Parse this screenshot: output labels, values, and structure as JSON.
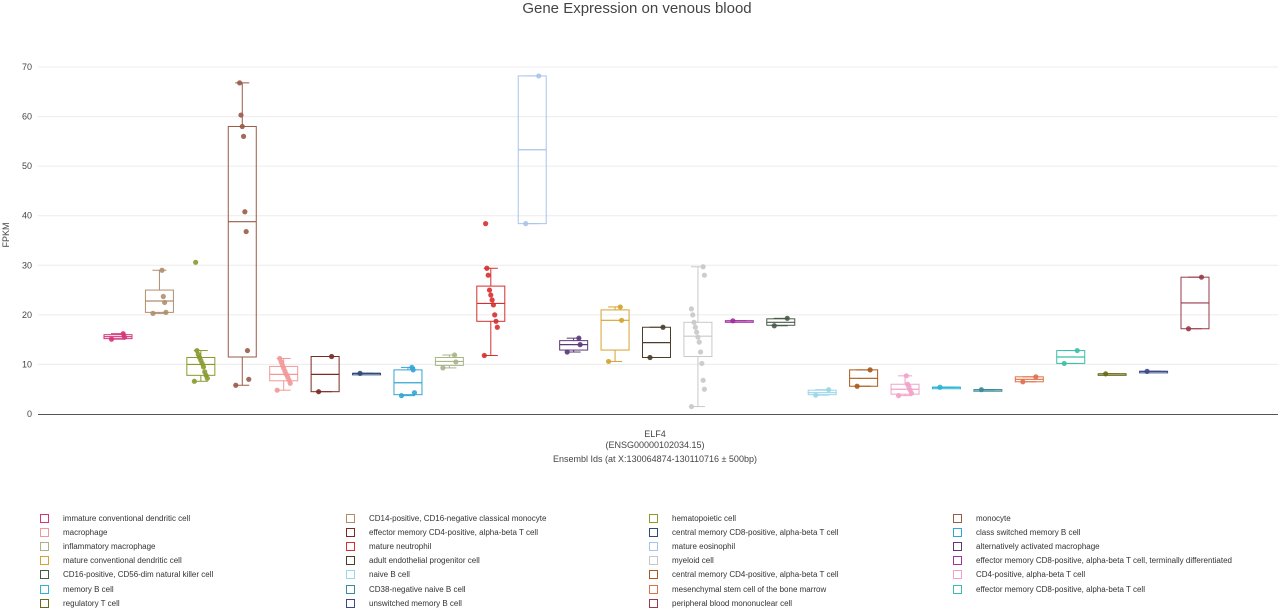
{
  "chart_data": {
    "type": "box",
    "title": "Gene Expression on venous blood",
    "ylabel": "FPKM",
    "xlabel_lines": [
      "ELF4",
      "(ENSG00000102034.15)",
      "Ensembl Ids (at X:130064874-130110716 ± 500bp)"
    ],
    "ylim": [
      0,
      70
    ],
    "yticks": [
      0,
      10,
      20,
      30,
      40,
      50,
      60,
      70
    ],
    "grid": true,
    "series": [
      {
        "name": "immature conventional dendritic cell",
        "color": "#d6337a",
        "min": 15.1,
        "q1": 15.2,
        "median": 15.6,
        "q3": 16.0,
        "max": 16.2,
        "points": [
          15.1,
          15.5,
          16.2
        ]
      },
      {
        "name": "CD14-positive, CD16-negative classical monocyte",
        "color": "#b08e6d",
        "min": 20.3,
        "q1": 20.5,
        "median": 22.8,
        "q3": 25.0,
        "max": 29.0,
        "points": [
          20.3,
          20.5,
          22.5,
          23.7,
          29.0
        ]
      },
      {
        "name": "hematopoietic cell",
        "color": "#8a9a2e",
        "min": 6.6,
        "q1": 7.8,
        "median": 10.0,
        "q3": 11.4,
        "max": 12.8,
        "points": [
          6.6,
          7.2,
          7.8,
          8.5,
          9.5,
          10.2,
          10.8,
          11.4,
          12.0,
          12.8,
          30.6
        ]
      },
      {
        "name": "monocyte",
        "color": "#9a5a48",
        "min": 5.8,
        "q1": 11.5,
        "median": 38.8,
        "q3": 58.0,
        "max": 66.8,
        "points": [
          5.8,
          7.0,
          12.8,
          36.8,
          40.8,
          56.0,
          58.0,
          60.3,
          66.8
        ]
      },
      {
        "name": "macrophage",
        "color": "#f29898",
        "min": 4.8,
        "q1": 6.7,
        "median": 8.0,
        "q3": 9.6,
        "max": 11.2,
        "points": [
          4.8,
          6.2,
          6.9,
          7.5,
          8.0,
          8.6,
          9.2,
          9.8,
          10.5,
          11.2
        ]
      },
      {
        "name": "effector memory CD4-positive, alpha-beta T cell",
        "color": "#7a2a20",
        "min": 4.5,
        "q1": 4.5,
        "median": 8.0,
        "q3": 11.6,
        "max": 11.6,
        "points": [
          4.5,
          11.6
        ]
      },
      {
        "name": "central memory CD8-positive, alpha-beta T cell",
        "color": "#2e4a7a",
        "min": 8.2,
        "q1": 8.2,
        "median": 8.2,
        "q3": 8.2,
        "max": 8.2,
        "points": [
          8.2
        ]
      },
      {
        "name": "class switched memory B cell",
        "color": "#33a5d6",
        "min": 3.7,
        "q1": 3.9,
        "median": 6.3,
        "q3": 8.9,
        "max": 9.4,
        "points": [
          3.7,
          4.3,
          8.9,
          9.4
        ]
      },
      {
        "name": "inflammatory macrophage",
        "color": "#a9b48a",
        "min": 9.3,
        "q1": 9.8,
        "median": 10.6,
        "q3": 11.4,
        "max": 11.9,
        "points": [
          9.3,
          10.5,
          11.9
        ]
      },
      {
        "name": "mature neutrophil",
        "color": "#d62f2f",
        "min": 11.8,
        "q1": 18.7,
        "median": 22.3,
        "q3": 25.8,
        "max": 29.4,
        "points": [
          11.8,
          17.5,
          18.7,
          20.0,
          22.0,
          23.0,
          24.0,
          25.0,
          28.0,
          29.4,
          38.4
        ]
      },
      {
        "name": "mature eosinophil",
        "color": "#a8c4ea",
        "min": 38.4,
        "q1": 38.4,
        "median": 53.3,
        "q3": 68.2,
        "max": 68.2,
        "points": [
          38.4,
          68.2
        ]
      },
      {
        "name": "alternatively activated macrophage",
        "color": "#5a3a7a",
        "min": 12.5,
        "q1": 12.9,
        "median": 14.0,
        "q3": 14.8,
        "max": 15.3,
        "points": [
          12.5,
          14.0,
          15.3
        ]
      },
      {
        "name": "mature conventional dendritic cell",
        "color": "#d6a22f",
        "min": 10.6,
        "q1": 12.9,
        "median": 18.9,
        "q3": 21.0,
        "max": 21.6,
        "points": [
          10.6,
          18.9,
          21.6
        ]
      },
      {
        "name": "adult endothelial progenitor cell",
        "color": "#4a3e2a",
        "min": 11.4,
        "q1": 11.4,
        "median": 14.4,
        "q3": 17.5,
        "max": 17.5,
        "points": [
          11.4,
          17.5
        ]
      },
      {
        "name": "myeloid cell",
        "color": "#c8c8c8",
        "min": 1.5,
        "q1": 11.6,
        "median": 15.7,
        "q3": 18.5,
        "max": 29.7,
        "points": [
          1.5,
          5.0,
          6.8,
          10.2,
          12.5,
          14.5,
          15.5,
          16.5,
          17.5,
          18.5,
          20.0,
          21.2,
          28.0,
          29.7
        ]
      },
      {
        "name": "effector memory CD8-positive, alpha-beta T cell, terminally differentiated",
        "color": "#a02fa0",
        "min": 18.8,
        "q1": 18.8,
        "median": 18.8,
        "q3": 18.8,
        "max": 18.8,
        "points": [
          18.8
        ]
      },
      {
        "name": "CD16-positive, CD56-dim natural killer cell",
        "color": "#4a5a4a",
        "min": 17.8,
        "q1": 17.9,
        "median": 18.5,
        "q3": 19.2,
        "max": 19.3,
        "points": [
          17.8,
          19.3
        ]
      },
      {
        "name": "naive B cell",
        "color": "#99d6e8",
        "min": 3.8,
        "q1": 3.9,
        "median": 4.3,
        "q3": 4.8,
        "max": 4.9,
        "points": [
          3.8,
          4.9
        ]
      },
      {
        "name": "central memory CD4-positive, alpha-beta T cell",
        "color": "#a85a1a",
        "min": 5.6,
        "q1": 5.6,
        "median": 7.2,
        "q3": 8.9,
        "max": 8.9,
        "points": [
          5.6,
          8.9
        ]
      },
      {
        "name": "CD4-positive, alpha-beta T cell",
        "color": "#f2a2c8",
        "min": 3.7,
        "q1": 4.0,
        "median": 5.0,
        "q3": 6.0,
        "max": 7.7,
        "points": [
          3.7,
          4.2,
          4.8,
          5.5,
          6.0,
          7.7
        ]
      },
      {
        "name": "memory B cell",
        "color": "#2ab4d6",
        "min": 5.4,
        "q1": 5.4,
        "median": 5.4,
        "q3": 5.4,
        "max": 5.4,
        "points": [
          5.4
        ]
      },
      {
        "name": "CD38-negative naive B cell",
        "color": "#3a8a9a",
        "min": 4.9,
        "q1": 4.9,
        "median": 4.9,
        "q3": 4.9,
        "max": 4.9,
        "points": [
          4.9
        ]
      },
      {
        "name": "mesenchymal stem cell of the bone marrow",
        "color": "#e0704a",
        "min": 6.5,
        "q1": 6.5,
        "median": 7.0,
        "q3": 7.5,
        "max": 7.5,
        "points": [
          6.5,
          7.5
        ]
      },
      {
        "name": "effector memory CD8-positive, alpha-beta T cell",
        "color": "#3ac0a8",
        "min": 10.2,
        "q1": 10.2,
        "median": 11.5,
        "q3": 12.8,
        "max": 12.8,
        "points": [
          10.2,
          12.8
        ]
      },
      {
        "name": "regulatory T cell",
        "color": "#6a6a1a",
        "min": 8.1,
        "q1": 8.1,
        "median": 8.1,
        "q3": 8.1,
        "max": 8.1,
        "points": [
          8.1
        ]
      },
      {
        "name": "unswitched memory B cell",
        "color": "#3a4a8a",
        "min": 8.6,
        "q1": 8.6,
        "median": 8.6,
        "q3": 8.6,
        "max": 8.6,
        "points": [
          8.6
        ]
      },
      {
        "name": "peripheral blood mononuclear cell",
        "color": "#9a3a4a",
        "min": 17.2,
        "q1": 17.2,
        "median": 22.4,
        "q3": 27.6,
        "max": 27.6,
        "points": [
          17.2,
          27.6
        ]
      }
    ]
  },
  "legend": {
    "items": [
      {
        "label": "immature conventional dendritic cell",
        "color": "#d6337a"
      },
      {
        "label": "CD14-positive, CD16-negative classical monocyte",
        "color": "#b08e6d"
      },
      {
        "label": "hematopoietic cell",
        "color": "#8a9a2e"
      },
      {
        "label": "monocyte",
        "color": "#9a5a48"
      },
      {
        "label": "macrophage",
        "color": "#f29898"
      },
      {
        "label": "effector memory CD4-positive, alpha-beta T cell",
        "color": "#7a2a20"
      },
      {
        "label": "central memory CD8-positive, alpha-beta T cell",
        "color": "#2e4a7a"
      },
      {
        "label": "class switched memory B cell",
        "color": "#33a5d6"
      },
      {
        "label": "inflammatory macrophage",
        "color": "#a9b48a"
      },
      {
        "label": "mature neutrophil",
        "color": "#d62f2f"
      },
      {
        "label": "mature eosinophil",
        "color": "#a8c4ea"
      },
      {
        "label": "alternatively activated macrophage",
        "color": "#5a3a7a"
      },
      {
        "label": "mature conventional dendritic cell",
        "color": "#d6a22f"
      },
      {
        "label": "adult endothelial progenitor cell",
        "color": "#4a3e2a"
      },
      {
        "label": "myeloid cell",
        "color": "#c8c8c8"
      },
      {
        "label": "effector memory CD8-positive, alpha-beta T cell, terminally differentiated",
        "color": "#a02fa0"
      },
      {
        "label": "CD16-positive, CD56-dim natural killer cell",
        "color": "#4a5a4a"
      },
      {
        "label": "naive B cell",
        "color": "#99d6e8"
      },
      {
        "label": "central memory CD4-positive, alpha-beta T cell",
        "color": "#a85a1a"
      },
      {
        "label": "CD4-positive, alpha-beta T cell",
        "color": "#f2a2c8"
      },
      {
        "label": "memory B cell",
        "color": "#2ab4d6"
      },
      {
        "label": "CD38-negative naive B cell",
        "color": "#3a8a9a"
      },
      {
        "label": "mesenchymal stem cell of the bone marrow",
        "color": "#e0704a"
      },
      {
        "label": "effector memory CD8-positive, alpha-beta T cell",
        "color": "#3ac0a8"
      },
      {
        "label": "regulatory T cell",
        "color": "#6a6a1a"
      },
      {
        "label": "unswitched memory B cell",
        "color": "#3a4a8a"
      },
      {
        "label": "peripheral blood mononuclear cell",
        "color": "#9a3a4a"
      }
    ]
  }
}
